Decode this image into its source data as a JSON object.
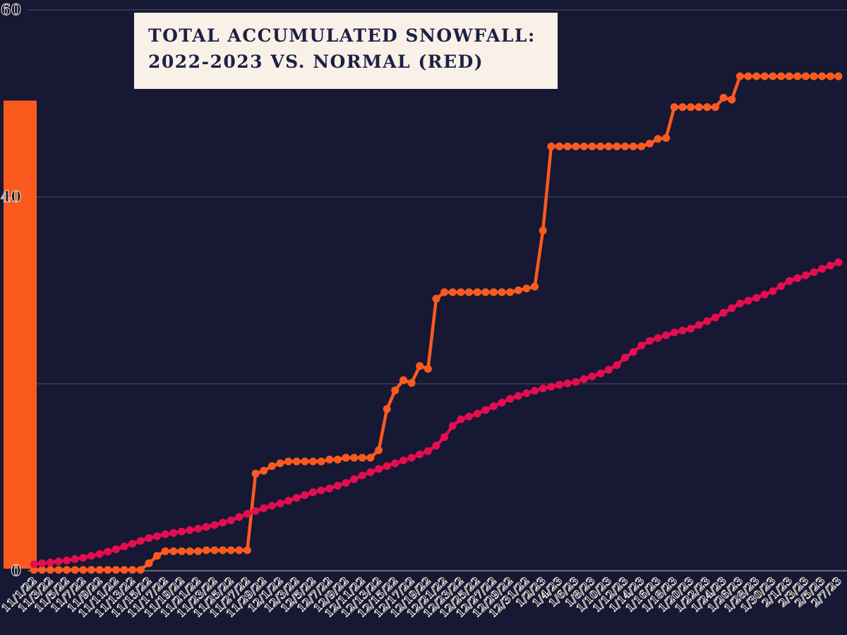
{
  "title": {
    "line1": "TOTAL ACCUMULATED SNOWFALL:",
    "line2": "2022-2023 VS. NORMAL (RED)"
  },
  "colors": {
    "background": "#161834",
    "actual_line": "#fb5a1f",
    "normal_line": "#e50d50",
    "title_box_bg": "#f9f0e7",
    "title_text": "#1c2144",
    "grid": "rgba(240,234,222,0.28)",
    "axis_label_outline": "#efe8da"
  },
  "chart_data": {
    "type": "line",
    "title": "TOTAL ACCUMULATED SNOWFALL: 2022-2023 VS. NORMAL (RED)",
    "xlabel": "",
    "ylabel": "",
    "ylim": [
      0,
      60
    ],
    "y_ticks": [
      0,
      20,
      40,
      60
    ],
    "y_tick_labels": [
      "0",
      "",
      "40",
      "60"
    ],
    "grid": "horizontal",
    "legend_position": "none (encoded in title)",
    "x_tick_every": 2,
    "x_tick_labels": [
      "11/1/22",
      "11/3/22",
      "11/5/22",
      "11/7/22",
      "11/9/22",
      "11/11/22",
      "11/13/22",
      "11/15/22",
      "11/17/22",
      "11/19/22",
      "11/21/22",
      "11/23/22",
      "11/25/22",
      "11/27/22",
      "11/29/22",
      "12/1/22",
      "12/3/22",
      "12/5/22",
      "12/7/22",
      "12/9/22",
      "12/11/22",
      "12/13/22",
      "12/15/22",
      "12/17/22",
      "12/19/22",
      "12/21/22",
      "12/23/22",
      "12/25/22",
      "12/27/22",
      "12/29/22",
      "12/31/22",
      "1/2/23",
      "1/4/23",
      "1/6/23",
      "1/8/23",
      "1/10/23",
      "1/12/23",
      "1/14/23",
      "1/16/23",
      "1/18/23",
      "1/20/23",
      "1/22/23",
      "1/24/23",
      "1/26/23",
      "1/28/23",
      "1/30/23",
      "2/1/23",
      "2/3/23",
      "2/5/23",
      "2/7/23"
    ],
    "accent_bar": {
      "top_value": 50.3
    },
    "series": [
      {
        "id": "actual-2022-2023",
        "name": "2022-2023 accumulated snowfall (orange)",
        "color": "#fb5a1f",
        "values": [
          0.1,
          0.1,
          0.1,
          0.1,
          0.1,
          0.1,
          0.1,
          0.1,
          0.1,
          0.1,
          0.1,
          0.1,
          0.1,
          0.1,
          0.8,
          1.6,
          2.1,
          2.1,
          2.1,
          2.1,
          2.1,
          2.2,
          2.2,
          2.2,
          2.2,
          2.2,
          2.2,
          10.4,
          10.7,
          11.2,
          11.5,
          11.7,
          11.7,
          11.7,
          11.7,
          11.7,
          11.9,
          11.9,
          12.1,
          12.1,
          12.1,
          12.1,
          12.9,
          17.3,
          19.3,
          20.4,
          20.1,
          21.9,
          21.6,
          29.1,
          29.8,
          29.8,
          29.8,
          29.8,
          29.8,
          29.8,
          29.8,
          29.8,
          29.8,
          30.0,
          30.2,
          30.4,
          36.4,
          45.4,
          45.4,
          45.4,
          45.4,
          45.4,
          45.4,
          45.4,
          45.4,
          45.4,
          45.4,
          45.4,
          45.4,
          45.7,
          46.2,
          46.3,
          49.6,
          49.6,
          49.6,
          49.6,
          49.6,
          49.6,
          50.6,
          50.4,
          52.9,
          52.9,
          52.9,
          52.9,
          52.9,
          52.9,
          52.9,
          52.9,
          52.9,
          52.9,
          52.9,
          52.9,
          52.9
        ]
      },
      {
        "id": "normal",
        "name": "Normal accumulated snowfall (red)",
        "color": "#e50d50",
        "values": [
          0.7,
          0.8,
          0.9,
          1.0,
          1.1,
          1.25,
          1.4,
          1.6,
          1.8,
          2.05,
          2.3,
          2.6,
          2.9,
          3.2,
          3.5,
          3.7,
          3.9,
          4.05,
          4.2,
          4.35,
          4.5,
          4.7,
          4.9,
          5.15,
          5.4,
          5.75,
          6.1,
          6.4,
          6.7,
          6.95,
          7.2,
          7.5,
          7.8,
          8.1,
          8.4,
          8.6,
          8.8,
          9.1,
          9.4,
          9.8,
          10.2,
          10.55,
          10.9,
          11.2,
          11.5,
          11.8,
          12.1,
          12.45,
          12.8,
          13.4,
          14.3,
          15.5,
          16.2,
          16.5,
          16.8,
          17.2,
          17.6,
          18.0,
          18.4,
          18.7,
          19.0,
          19.25,
          19.5,
          19.7,
          19.9,
          20.05,
          20.2,
          20.5,
          20.8,
          21.1,
          21.5,
          22.0,
          22.8,
          23.4,
          24.1,
          24.6,
          24.9,
          25.2,
          25.5,
          25.7,
          25.9,
          26.3,
          26.7,
          27.1,
          27.6,
          28.1,
          28.6,
          28.9,
          29.2,
          29.55,
          29.9,
          30.45,
          31.0,
          31.3,
          31.6,
          31.95,
          32.3,
          32.65,
          33.0
        ]
      }
    ]
  }
}
